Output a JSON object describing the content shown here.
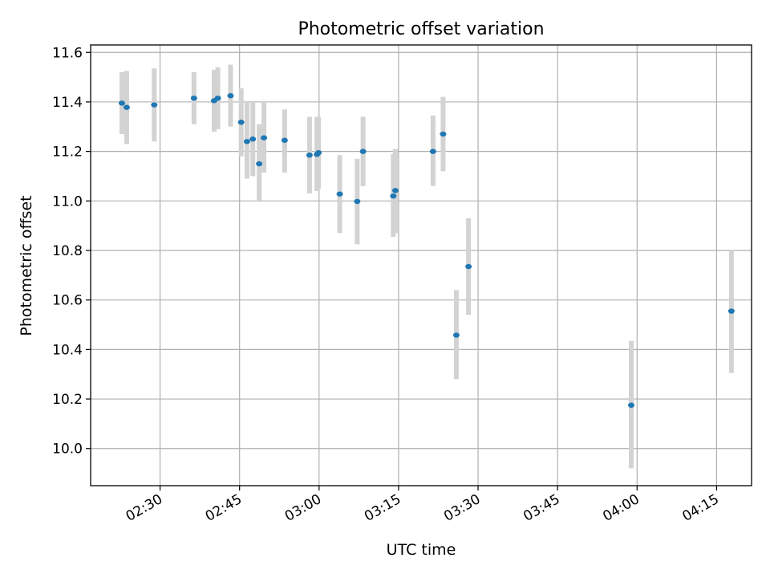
{
  "chart_data": {
    "type": "scatter",
    "title": "Photometric offset variation",
    "xlabel": "UTC time",
    "ylabel": "Photometric offset",
    "x_unit": "minutes since 00:00 UTC",
    "xlim": [
      136.9,
      261.6
    ],
    "ylim": [
      9.85,
      11.63
    ],
    "grid": true,
    "x_ticks": [
      {
        "value": 150,
        "label": "02:30"
      },
      {
        "value": 165,
        "label": "02:45"
      },
      {
        "value": 180,
        "label": "03:00"
      },
      {
        "value": 195,
        "label": "03:15"
      },
      {
        "value": 210,
        "label": "03:30"
      },
      {
        "value": 225,
        "label": "03:45"
      },
      {
        "value": 240,
        "label": "04:00"
      },
      {
        "value": 255,
        "label": "04:15"
      }
    ],
    "y_ticks": [
      {
        "value": 10.0,
        "label": "10.0"
      },
      {
        "value": 10.2,
        "label": "10.2"
      },
      {
        "value": 10.4,
        "label": "10.4"
      },
      {
        "value": 10.6,
        "label": "10.6"
      },
      {
        "value": 10.8,
        "label": "10.8"
      },
      {
        "value": 11.0,
        "label": "11.0"
      },
      {
        "value": 11.2,
        "label": "11.2"
      },
      {
        "value": 11.4,
        "label": "11.4"
      },
      {
        "value": 11.6,
        "label": "11.6"
      }
    ],
    "colors": {
      "point": "#1f77b4",
      "errorbar": "#d3d3d3",
      "grid": "#b0b0b0",
      "axes": "#000000"
    },
    "series": [
      {
        "name": "offset",
        "points": [
          {
            "x": 142.8,
            "y": 11.395,
            "lo": 11.27,
            "hi": 11.52
          },
          {
            "x": 143.7,
            "y": 11.378,
            "lo": 11.23,
            "hi": 11.525
          },
          {
            "x": 148.9,
            "y": 11.388,
            "lo": 11.24,
            "hi": 11.535
          },
          {
            "x": 156.4,
            "y": 11.415,
            "lo": 11.31,
            "hi": 11.52
          },
          {
            "x": 160.2,
            "y": 11.405,
            "lo": 11.28,
            "hi": 11.53
          },
          {
            "x": 160.9,
            "y": 11.415,
            "lo": 11.29,
            "hi": 11.54
          },
          {
            "x": 163.3,
            "y": 11.425,
            "lo": 11.3,
            "hi": 11.55
          },
          {
            "x": 165.3,
            "y": 11.318,
            "lo": 11.18,
            "hi": 11.455
          },
          {
            "x": 166.4,
            "y": 11.24,
            "lo": 11.09,
            "hi": 11.4
          },
          {
            "x": 167.5,
            "y": 11.25,
            "lo": 11.1,
            "hi": 11.4
          },
          {
            "x": 168.7,
            "y": 11.15,
            "lo": 11.0,
            "hi": 11.31
          },
          {
            "x": 169.6,
            "y": 11.255,
            "lo": 11.115,
            "hi": 11.4
          },
          {
            "x": 173.5,
            "y": 11.245,
            "lo": 11.115,
            "hi": 11.37
          },
          {
            "x": 178.2,
            "y": 11.185,
            "lo": 11.03,
            "hi": 11.34
          },
          {
            "x": 179.6,
            "y": 11.188,
            "lo": 11.04,
            "hi": 11.34
          },
          {
            "x": 179.9,
            "y": 11.195,
            "lo": 11.05,
            "hi": 11.34
          },
          {
            "x": 183.9,
            "y": 11.028,
            "lo": 10.87,
            "hi": 11.185
          },
          {
            "x": 187.2,
            "y": 10.998,
            "lo": 10.825,
            "hi": 11.17
          },
          {
            "x": 188.3,
            "y": 11.2,
            "lo": 11.06,
            "hi": 11.34
          },
          {
            "x": 194.0,
            "y": 11.02,
            "lo": 10.855,
            "hi": 11.19
          },
          {
            "x": 194.4,
            "y": 11.042,
            "lo": 10.87,
            "hi": 11.21
          },
          {
            "x": 201.5,
            "y": 11.2,
            "lo": 11.06,
            "hi": 11.345
          },
          {
            "x": 203.4,
            "y": 11.27,
            "lo": 11.12,
            "hi": 11.42
          },
          {
            "x": 205.9,
            "y": 10.458,
            "lo": 10.28,
            "hi": 10.64
          },
          {
            "x": 208.2,
            "y": 10.735,
            "lo": 10.54,
            "hi": 10.93
          },
          {
            "x": 238.9,
            "y": 10.175,
            "lo": 9.92,
            "hi": 10.435
          },
          {
            "x": 257.8,
            "y": 10.555,
            "lo": 10.305,
            "hi": 10.8
          }
        ]
      }
    ]
  }
}
